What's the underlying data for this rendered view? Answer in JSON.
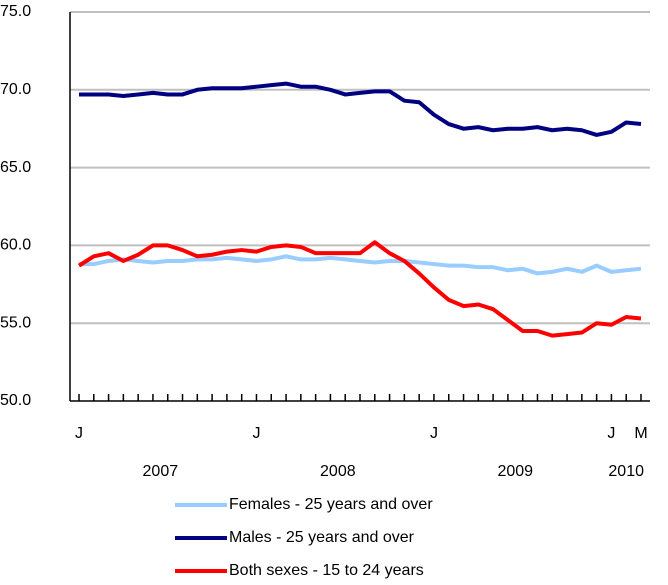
{
  "chart_data": {
    "type": "line",
    "categories": [
      "J",
      null,
      null,
      null,
      null,
      null,
      null,
      null,
      null,
      null,
      null,
      null,
      "J",
      null,
      null,
      null,
      null,
      null,
      null,
      null,
      null,
      null,
      null,
      null,
      "J",
      null,
      null,
      null,
      null,
      null,
      null,
      null,
      null,
      null,
      null,
      null,
      "J",
      null,
      "M"
    ],
    "year_labels": [
      "2007",
      "2008",
      "2009",
      "2010"
    ],
    "series": [
      {
        "name": "Females - 25 years and over",
        "color": "#99ccff",
        "values": [
          58.8,
          58.8,
          59.0,
          59.1,
          59.0,
          58.9,
          59.0,
          59.0,
          59.1,
          59.1,
          59.2,
          59.1,
          59.0,
          59.1,
          59.3,
          59.1,
          59.1,
          59.2,
          59.1,
          59.0,
          58.9,
          59.0,
          59.0,
          58.9,
          58.8,
          58.7,
          58.7,
          58.6,
          58.6,
          58.4,
          58.5,
          58.2,
          58.3,
          58.5,
          58.3,
          58.7,
          58.3,
          58.4,
          58.5
        ]
      },
      {
        "name": "Males - 25 years and over",
        "color": "#000080",
        "values": [
          69.7,
          69.7,
          69.7,
          69.6,
          69.7,
          69.8,
          69.7,
          69.7,
          70.0,
          70.1,
          70.1,
          70.1,
          70.2,
          70.3,
          70.4,
          70.2,
          70.2,
          70.0,
          69.7,
          69.8,
          69.9,
          69.9,
          69.3,
          69.2,
          68.4,
          67.8,
          67.5,
          67.6,
          67.4,
          67.5,
          67.5,
          67.6,
          67.4,
          67.5,
          67.4,
          67.1,
          67.3,
          67.9,
          67.8
        ]
      },
      {
        "name": "Both sexes - 15 to 24 years",
        "color": "#ff0000",
        "values": [
          58.7,
          59.3,
          59.5,
          59.0,
          59.4,
          60.0,
          60.0,
          59.7,
          59.3,
          59.4,
          59.6,
          59.7,
          59.6,
          59.9,
          60.0,
          59.9,
          59.5,
          59.5,
          59.5,
          59.5,
          60.2,
          59.5,
          59.0,
          58.2,
          57.3,
          56.5,
          56.1,
          56.2,
          55.9,
          55.2,
          54.5,
          54.5,
          54.2,
          54.3,
          54.4,
          55.0,
          54.9,
          55.4,
          55.3
        ]
      }
    ],
    "ylim": [
      50,
      75
    ],
    "yticks": [
      {
        "value": 50,
        "label": "50.0"
      },
      {
        "value": 55,
        "label": "55.0"
      },
      {
        "value": 60,
        "label": "60.0"
      },
      {
        "value": 65,
        "label": "65.0"
      },
      {
        "value": 70,
        "label": "70.0"
      },
      {
        "value": 75,
        "label": "75.0"
      }
    ],
    "grid": true
  }
}
